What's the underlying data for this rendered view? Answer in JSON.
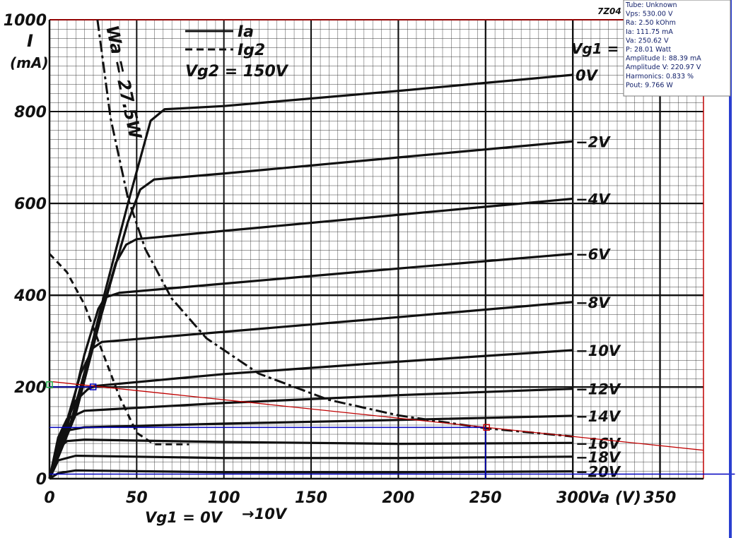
{
  "chart_data": {
    "type": "line",
    "xlim": [
      0,
      375
    ],
    "ylim": [
      0,
      1000
    ],
    "xticks": [
      0,
      50,
      100,
      150,
      200,
      250,
      300,
      350
    ],
    "yticks": [
      0,
      200,
      400,
      600,
      800,
      1000
    ],
    "y_label_top": "I",
    "y_label_unit": "(mA)",
    "x_label": "Va (V)",
    "grid": true,
    "code": "7Z04",
    "legend": [
      {
        "label": "Ia",
        "dash": false
      },
      {
        "label": "Ig2",
        "dash": true
      }
    ],
    "annotations": [
      "Vg2 = 150V",
      "Vg1 =",
      "Vg1 = 0V",
      "→10V"
    ],
    "power_label": "Wa = 27.5W",
    "series": [
      {
        "name": "0V",
        "x": [
          0,
          15,
          30,
          45,
          58,
          66,
          100,
          200,
          300
        ],
        "values": [
          0,
          150,
          380,
          600,
          780,
          805,
          812,
          845,
          880
        ]
      },
      {
        "name": "−2V",
        "x": [
          0,
          15,
          30,
          45,
          52,
          60,
          100,
          200,
          300
        ],
        "values": [
          0,
          140,
          360,
          560,
          630,
          652,
          665,
          700,
          735
        ]
      },
      {
        "name": "−4V",
        "x": [
          0,
          12,
          25,
          38,
          44,
          50,
          100,
          200,
          300
        ],
        "values": [
          0,
          120,
          300,
          470,
          510,
          522,
          540,
          575,
          610
        ]
      },
      {
        "name": "−6V",
        "x": [
          0,
          10,
          20,
          28,
          32,
          40,
          100,
          200,
          300
        ],
        "values": [
          0,
          110,
          270,
          370,
          395,
          405,
          425,
          458,
          490
        ]
      },
      {
        "name": "−8V",
        "x": [
          0,
          8,
          18,
          25,
          30,
          100,
          200,
          300
        ],
        "values": [
          0,
          100,
          230,
          285,
          298,
          320,
          352,
          385
        ]
      },
      {
        "name": "−10V",
        "x": [
          0,
          6,
          15,
          22,
          26,
          100,
          200,
          300
        ],
        "values": [
          0,
          90,
          170,
          195,
          202,
          228,
          255,
          280
        ]
      },
      {
        "name": "−12V",
        "x": [
          0,
          5,
          10,
          20,
          100,
          200,
          300
        ],
        "values": [
          0,
          90,
          130,
          148,
          165,
          182,
          196
        ]
      },
      {
        "name": "−14V",
        "x": [
          0,
          5,
          10,
          20,
          100,
          200,
          300
        ],
        "values": [
          0,
          80,
          105,
          112,
          120,
          128,
          137
        ]
      },
      {
        "name": "−16V",
        "x": [
          0,
          5,
          10,
          20,
          100,
          200,
          300
        ],
        "values": [
          0,
          65,
          82,
          85,
          80,
          76,
          78
        ]
      },
      {
        "name": "−18V",
        "x": [
          0,
          5,
          15,
          100,
          200,
          300
        ],
        "values": [
          0,
          40,
          50,
          45,
          45,
          48
        ]
      },
      {
        "name": "−20V",
        "x": [
          0,
          5,
          15,
          100,
          200,
          300
        ],
        "values": [
          0,
          12,
          18,
          14,
          14,
          16
        ]
      }
    ],
    "screen_grid_current": {
      "x": [
        0,
        10,
        20,
        30,
        40,
        50,
        60,
        80
      ],
      "values": [
        490,
        450,
        380,
        280,
        180,
        100,
        75,
        75
      ]
    },
    "power_curve": {
      "x": [
        27.5,
        35,
        45,
        55,
        70,
        90,
        120,
        160,
        200,
        250,
        300
      ],
      "values": [
        1000,
        786,
        611,
        500,
        393,
        306,
        229,
        172,
        138,
        110,
        92
      ]
    },
    "overlay": {
      "load_line": {
        "color": "#c00000",
        "x": [
          0,
          375
        ],
        "values": [
          212,
          62
        ]
      },
      "guides": [
        {
          "color": "#0000c0",
          "x": [
            0,
            25
          ],
          "values": [
            200,
            200
          ]
        },
        {
          "color": "#0000c0",
          "x": [
            0,
            250
          ],
          "values": [
            111.75,
            111.75
          ]
        },
        {
          "color": "#0000c0",
          "x": [
            250,
            250
          ],
          "values": [
            0,
            111.75
          ]
        },
        {
          "color": "#0000c0",
          "x": [
            0,
            393
          ],
          "values": [
            10,
            10
          ]
        }
      ],
      "markers": [
        {
          "color": "#22b14c",
          "x": 0,
          "value": 205
        },
        {
          "color": "#0000c0",
          "x": 25,
          "value": 200
        },
        {
          "color": "#c00000",
          "x": 250.62,
          "value": 111.75
        }
      ]
    }
  },
  "info_panel": [
    "Tube: Unknown",
    "Vps: 530.00 V",
    "Ra: 2.50 kOhm",
    "Ia: 111.75 mA",
    "Va: 250.62 V",
    "P: 28.01 Watt",
    "Amplitude I: 88.39 mA",
    "Amplitude V: 220.97 V",
    "Harmonics: 0.833 %",
    "Pout: 9.766 W"
  ]
}
